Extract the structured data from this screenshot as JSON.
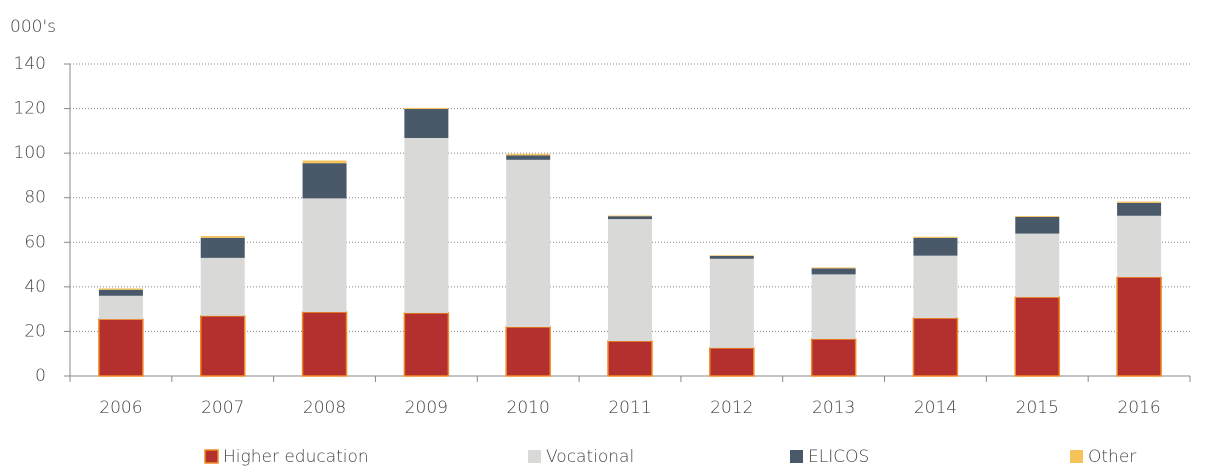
{
  "chart_data": {
    "type": "stacked_bar",
    "ylabel": "000's",
    "categories": [
      "2006",
      "2007",
      "2008",
      "2009",
      "2010",
      "2011",
      "2012",
      "2013",
      "2014",
      "2015",
      "2016"
    ],
    "series": [
      {
        "name": "Higher education",
        "color": "#b3302e",
        "values": [
          25.5,
          27,
          28.7,
          28.3,
          22,
          15.7,
          12.6,
          16.6,
          26,
          35.4,
          44.4
        ]
      },
      {
        "name": "Vocational",
        "color": "#d9dad8",
        "values": [
          10.5,
          26,
          51,
          78.5,
          75,
          54.7,
          40,
          29,
          28,
          28.5,
          27.5
        ]
      },
      {
        "name": "ELICOS",
        "color": "#4a5969",
        "values": [
          2.7,
          9,
          15.8,
          13,
          2,
          1.3,
          1.3,
          2.7,
          8,
          7.5,
          5.8
        ]
      },
      {
        "name": "Other",
        "color": "#f6c25a",
        "values": [
          0.6,
          0.8,
          1.2,
          0.5,
          0.7,
          0.3,
          0.3,
          0.4,
          0.5,
          0.4,
          0.6
        ]
      }
    ],
    "ylim": [
      0,
      140
    ],
    "yticks": [
      0,
      20,
      40,
      60,
      80,
      100,
      120,
      140
    ],
    "grid": true,
    "legend": "bottom"
  }
}
